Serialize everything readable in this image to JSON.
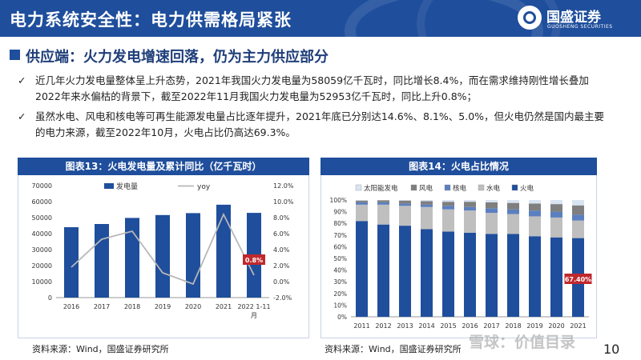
{
  "header": {
    "title": "电力系统安全性：电力供需格局紧张"
  },
  "logo": {
    "name": "国盛证券",
    "en": "GUOSHENG SECURITIES"
  },
  "section": {
    "title": "供应端：火力发电增速回落，仍为主力供应部分"
  },
  "bullets": [
    {
      "mark": "✓",
      "text": "近几年火力发电量整体呈上升态势，2021年我国火力发电量为58059亿千瓦时，同比增长8.4%，而在需求维持刚性增长叠加2022年来水偏枯的背景下，截至2022年11月我国火力发电量为52953亿千瓦时，同比上升0.8%；"
    },
    {
      "mark": "✓",
      "text": "虽然水电、风电和核电等可再生能源发电量占比逐年提升，2021年底已分别达14.6%、8.1%、5.0%，但火电仍然是国内最主要的电力来源，截至2022年10月，火电占比仍高达69.3%。"
    }
  ],
  "colors": {
    "primary": "#1f4e9c",
    "bar": "#1f4e9c",
    "line": "#b7b7b7",
    "highlight": "#c0282d"
  },
  "chart_data": [
    {
      "type": "bar",
      "title": "图表13：火电发电量及累计同比（亿千瓦时）",
      "categories": [
        "2016",
        "2017",
        "2018",
        "2019",
        "2020",
        "2021",
        "2022 1-11月"
      ],
      "category_lines": [
        [
          "2016"
        ],
        [
          "2017"
        ],
        [
          "2018"
        ],
        [
          "2019"
        ],
        [
          "2020"
        ],
        [
          "2021"
        ],
        [
          "2022 1-11",
          "月"
        ]
      ],
      "series": [
        {
          "name": "发电量",
          "type": "bar",
          "axis": "left",
          "values": [
            44000,
            46000,
            49800,
            51600,
            52800,
            58059,
            52953
          ]
        },
        {
          "name": "yoy",
          "type": "line",
          "axis": "right",
          "values": [
            1.8,
            5.3,
            6.3,
            1.1,
            -0.3,
            8.4,
            0.8
          ]
        }
      ],
      "ylim_left": [
        0,
        70000
      ],
      "yticks_left": [
        "0",
        "10000",
        "20000",
        "30000",
        "40000",
        "50000",
        "60000",
        "70000"
      ],
      "ylim_right": [
        -2,
        12
      ],
      "yticks_right": [
        "-2.0%",
        "0.0%",
        "2.0%",
        "4.0%",
        "6.0%",
        "8.0%",
        "10.0%",
        "12.0%"
      ],
      "annotation": {
        "text": "0.8%",
        "category": "2022 1-11月"
      },
      "legend": "top-center",
      "source": "资料来源：Wind，国盛证券研究所"
    },
    {
      "type": "bar",
      "stacked": true,
      "title": "图表14：火电占比情况",
      "categories": [
        "2011",
        "2012",
        "2013",
        "2014",
        "2015",
        "2016",
        "2017",
        "2018",
        "2019",
        "2020",
        "2021"
      ],
      "series": [
        {
          "name": "火电",
          "values": [
            82,
            79,
            78,
            75,
            73,
            72,
            71,
            71,
            69,
            68,
            67.4
          ],
          "color": "#1f4e9c"
        },
        {
          "name": "水电",
          "values": [
            14,
            17,
            17,
            19,
            19,
            19,
            18,
            17,
            17,
            17,
            15
          ],
          "color": "#bfbfbf"
        },
        {
          "name": "核电",
          "values": [
            2,
            2,
            2,
            2,
            3,
            3,
            4,
            4,
            5,
            5,
            5
          ],
          "color": "#5b7fbf"
        },
        {
          "name": "风电",
          "values": [
            1.5,
            1.8,
            2.5,
            3,
            3.5,
            4.5,
            5,
            5.5,
            6,
            6.5,
            8
          ],
          "color": "#7f7f7f"
        },
        {
          "name": "太阳能发电",
          "values": [
            0.5,
            0.2,
            0.5,
            1,
            1.5,
            1.5,
            2,
            2.5,
            3,
            3.5,
            4.6
          ],
          "color": "#d9e4f2"
        }
      ],
      "legend_order": [
        "太阳能发电",
        "风电",
        "核电",
        "水电",
        "火电"
      ],
      "ylim": [
        0,
        100
      ],
      "yticks": [
        "0%",
        "10%",
        "20%",
        "30%",
        "40%",
        "50%",
        "60%",
        "70%",
        "80%",
        "90%",
        "100%"
      ],
      "annotation": {
        "text": "67.40%",
        "category": "2021"
      },
      "legend": "top",
      "source": "资料来源：Wind，国盛证券研究所"
    }
  ],
  "page_number": "10",
  "watermark": "雪球：价值目录"
}
